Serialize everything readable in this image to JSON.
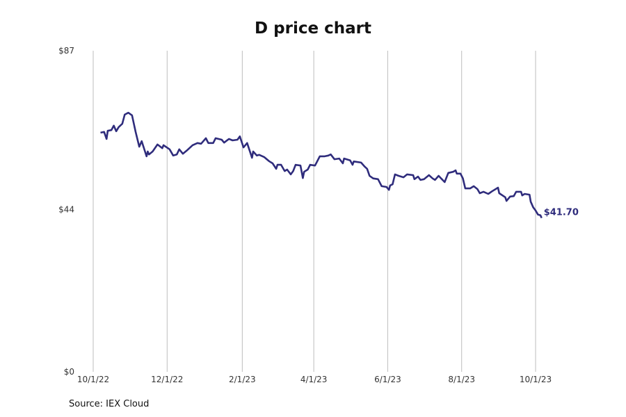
{
  "chart_data": {
    "type": "line",
    "title": "D price chart",
    "source": "Source: IEX Cloud",
    "xlabel": "",
    "ylabel": "",
    "ylim": [
      0,
      87
    ],
    "xlim": [
      "2022-10-01",
      "2023-10-01"
    ],
    "y_ticks": [
      {
        "value": 0,
        "label": "$0"
      },
      {
        "value": 44,
        "label": "$44"
      },
      {
        "value": 87,
        "label": "$87"
      }
    ],
    "x_ticks": [
      {
        "date": "2022-10-01",
        "label": "10/1/22"
      },
      {
        "date": "2022-12-01",
        "label": "12/1/22"
      },
      {
        "date": "2023-02-01",
        "label": "2/1/23"
      },
      {
        "date": "2023-04-01",
        "label": "4/1/23"
      },
      {
        "date": "2023-06-01",
        "label": "6/1/23"
      },
      {
        "date": "2023-08-01",
        "label": "8/1/23"
      },
      {
        "date": "2023-10-01",
        "label": "10/1/23"
      }
    ],
    "grid": "vertical",
    "line_color": "#2f2c7c",
    "last_value_label": "$41.70",
    "series": [
      {
        "points": [
          [
            "2022-10-07",
            64.8
          ],
          [
            "2022-10-10",
            65.0
          ],
          [
            "2022-10-12",
            63.1
          ],
          [
            "2022-10-13",
            65.3
          ],
          [
            "2022-10-16",
            65.5
          ],
          [
            "2022-10-18",
            66.7
          ],
          [
            "2022-10-20",
            65.2
          ],
          [
            "2022-10-22",
            66.3
          ],
          [
            "2022-10-25",
            67.2
          ],
          [
            "2022-10-27",
            69.7
          ],
          [
            "2022-10-30",
            70.2
          ],
          [
            "2022-11-02",
            69.5
          ],
          [
            "2022-11-05",
            65.0
          ],
          [
            "2022-11-08",
            61.0
          ],
          [
            "2022-11-10",
            62.5
          ],
          [
            "2022-11-14",
            58.4
          ],
          [
            "2022-11-15",
            59.7
          ],
          [
            "2022-11-16",
            58.9
          ],
          [
            "2022-11-19",
            59.7
          ],
          [
            "2022-11-23",
            61.6
          ],
          [
            "2022-11-27",
            60.6
          ],
          [
            "2022-11-28",
            61.4
          ],
          [
            "2022-12-03",
            60.3
          ],
          [
            "2022-12-06",
            58.6
          ],
          [
            "2022-12-09",
            58.9
          ],
          [
            "2022-12-11",
            60.3
          ],
          [
            "2022-12-14",
            59.1
          ],
          [
            "2022-12-17",
            59.9
          ],
          [
            "2022-12-22",
            61.4
          ],
          [
            "2022-12-26",
            62.0
          ],
          [
            "2022-12-29",
            61.8
          ],
          [
            "2023-01-02",
            63.3
          ],
          [
            "2023-01-04",
            62.0
          ],
          [
            "2023-01-08",
            62.0
          ],
          [
            "2023-01-10",
            63.3
          ],
          [
            "2023-01-15",
            62.9
          ],
          [
            "2023-01-17",
            62.1
          ],
          [
            "2023-01-21",
            63.1
          ],
          [
            "2023-01-24",
            62.7
          ],
          [
            "2023-01-28",
            62.9
          ],
          [
            "2023-01-30",
            63.8
          ],
          [
            "2023-02-02",
            60.8
          ],
          [
            "2023-02-05",
            62.0
          ],
          [
            "2023-02-09",
            58.0
          ],
          [
            "2023-02-10",
            59.7
          ],
          [
            "2023-02-13",
            58.6
          ],
          [
            "2023-02-15",
            58.8
          ],
          [
            "2023-02-19",
            58.2
          ],
          [
            "2023-02-23",
            57.1
          ],
          [
            "2023-02-26",
            56.5
          ],
          [
            "2023-03-01",
            55.0
          ],
          [
            "2023-03-02",
            56.1
          ],
          [
            "2023-03-05",
            56.1
          ],
          [
            "2023-03-08",
            54.4
          ],
          [
            "2023-03-10",
            54.8
          ],
          [
            "2023-03-13",
            53.5
          ],
          [
            "2023-03-15",
            54.4
          ],
          [
            "2023-03-17",
            56.1
          ],
          [
            "2023-03-21",
            55.9
          ],
          [
            "2023-03-23",
            52.5
          ],
          [
            "2023-03-24",
            54.2
          ],
          [
            "2023-03-27",
            54.8
          ],
          [
            "2023-03-29",
            56.1
          ],
          [
            "2023-04-02",
            55.9
          ],
          [
            "2023-04-06",
            58.4
          ],
          [
            "2023-04-10",
            58.4
          ],
          [
            "2023-04-13",
            58.6
          ],
          [
            "2023-04-15",
            58.9
          ],
          [
            "2023-04-18",
            57.6
          ],
          [
            "2023-04-22",
            57.8
          ],
          [
            "2023-04-25",
            56.5
          ],
          [
            "2023-04-26",
            57.8
          ],
          [
            "2023-05-01",
            57.3
          ],
          [
            "2023-05-03",
            56.1
          ],
          [
            "2023-05-04",
            57.0
          ],
          [
            "2023-05-10",
            56.7
          ],
          [
            "2023-05-13",
            55.6
          ],
          [
            "2023-05-15",
            55.0
          ],
          [
            "2023-05-17",
            53.1
          ],
          [
            "2023-05-20",
            52.4
          ],
          [
            "2023-05-24",
            52.2
          ],
          [
            "2023-05-27",
            50.3
          ],
          [
            "2023-05-31",
            50.1
          ],
          [
            "2023-06-02",
            49.3
          ],
          [
            "2023-06-03",
            50.5
          ],
          [
            "2023-06-05",
            50.8
          ],
          [
            "2023-06-07",
            53.5
          ],
          [
            "2023-06-10",
            53.1
          ],
          [
            "2023-06-14",
            52.7
          ],
          [
            "2023-06-17",
            53.5
          ],
          [
            "2023-06-22",
            53.3
          ],
          [
            "2023-06-23",
            52.2
          ],
          [
            "2023-06-26",
            52.9
          ],
          [
            "2023-06-28",
            52.0
          ],
          [
            "2023-07-01",
            52.2
          ],
          [
            "2023-07-05",
            53.3
          ],
          [
            "2023-07-08",
            52.4
          ],
          [
            "2023-07-10",
            52.0
          ],
          [
            "2023-07-13",
            53.1
          ],
          [
            "2023-07-18",
            51.4
          ],
          [
            "2023-07-21",
            53.9
          ],
          [
            "2023-07-25",
            54.2
          ],
          [
            "2023-07-27",
            54.6
          ],
          [
            "2023-07-28",
            53.7
          ],
          [
            "2023-07-31",
            53.7
          ],
          [
            "2023-08-02",
            52.4
          ],
          [
            "2023-08-04",
            49.7
          ],
          [
            "2023-08-08",
            49.7
          ],
          [
            "2023-08-11",
            50.3
          ],
          [
            "2023-08-14",
            49.5
          ],
          [
            "2023-08-16",
            48.4
          ],
          [
            "2023-08-19",
            48.8
          ],
          [
            "2023-08-23",
            48.2
          ],
          [
            "2023-08-26",
            48.9
          ],
          [
            "2023-08-31",
            49.9
          ],
          [
            "2023-09-01",
            48.4
          ],
          [
            "2023-09-06",
            47.3
          ],
          [
            "2023-09-07",
            46.3
          ],
          [
            "2023-09-10",
            47.5
          ],
          [
            "2023-09-13",
            47.6
          ],
          [
            "2023-09-15",
            48.8
          ],
          [
            "2023-09-19",
            48.8
          ],
          [
            "2023-09-20",
            47.8
          ],
          [
            "2023-09-22",
            48.2
          ],
          [
            "2023-09-26",
            48.0
          ],
          [
            "2023-09-27",
            46.1
          ],
          [
            "2023-09-29",
            44.6
          ],
          [
            "2023-10-01",
            43.7
          ],
          [
            "2023-10-03",
            42.6
          ],
          [
            "2023-10-05",
            42.4
          ],
          [
            "2023-10-06",
            41.7
          ]
        ]
      }
    ]
  }
}
